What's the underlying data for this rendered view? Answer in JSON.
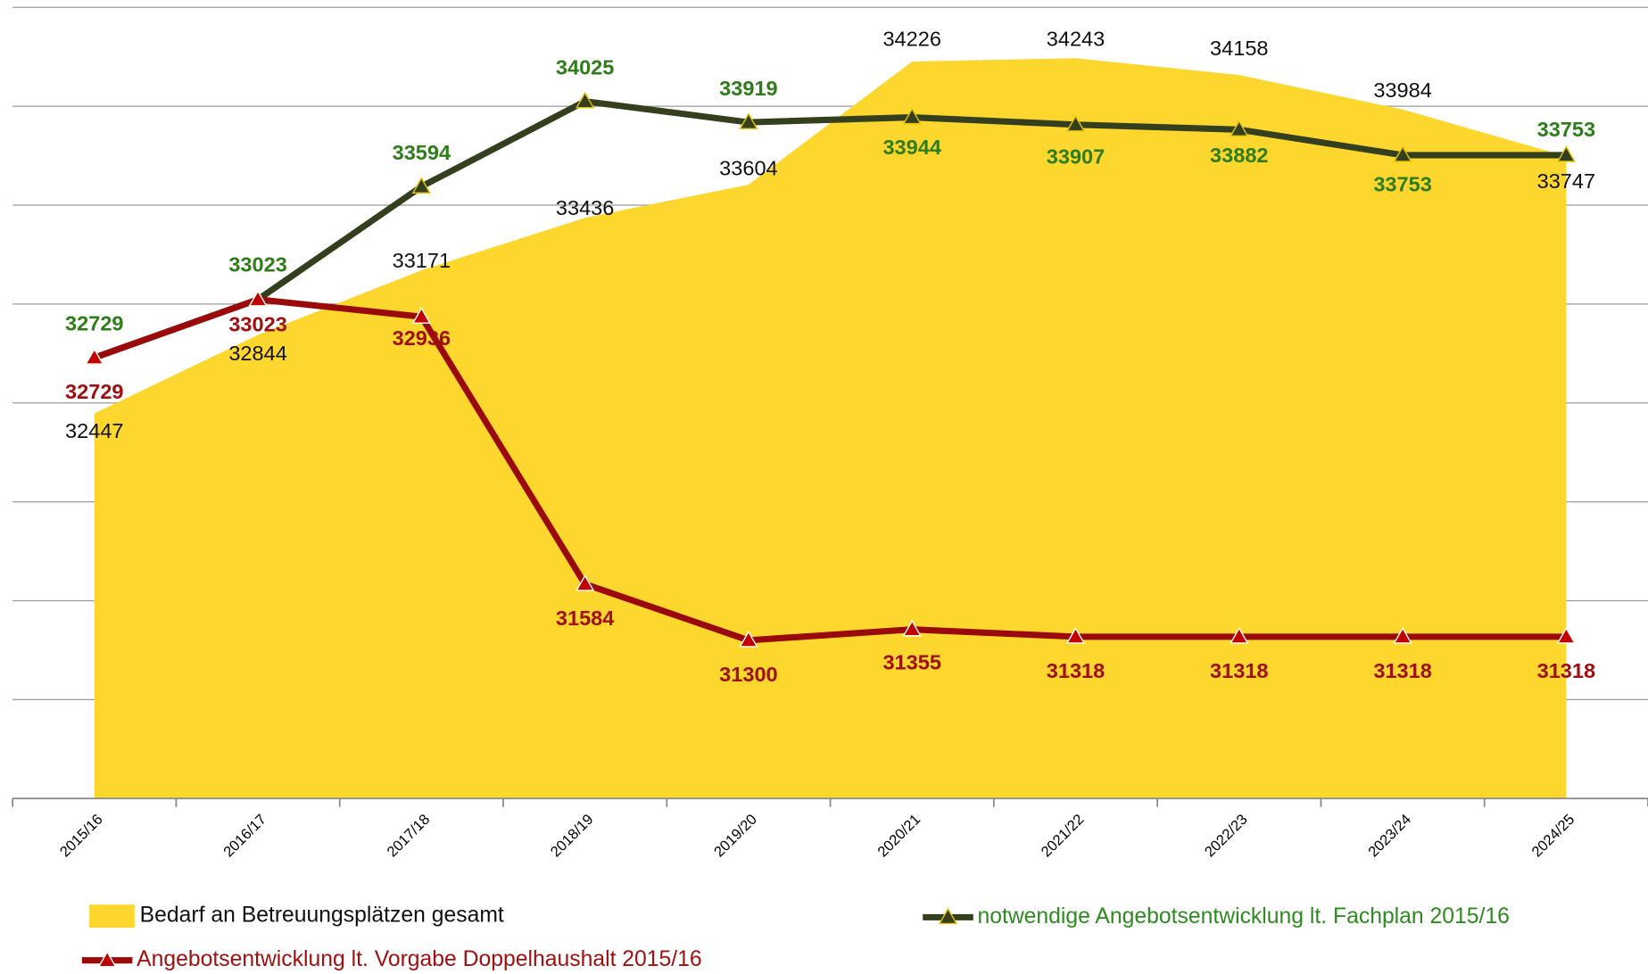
{
  "chart_data": {
    "type": "area_line",
    "categories": [
      "2015/16",
      "2016/17",
      "2017/18",
      "2018/19",
      "2019/20",
      "2020/21",
      "2021/22",
      "2022/23",
      "2023/24",
      "2024/25"
    ],
    "series": [
      {
        "name": "Bedarf an Betreuungsplätzen gesamt",
        "type": "area",
        "color": "#fdd62e",
        "values": [
          32447,
          32844,
          33171,
          33436,
          33604,
          34226,
          34243,
          34158,
          33984,
          33747
        ]
      },
      {
        "name": "notwendige Angebotsentwicklung lt. Fachplan 2015/16",
        "type": "line",
        "color": "#343f1e",
        "values": [
          32729,
          33023,
          33594,
          34025,
          33919,
          33944,
          33907,
          33882,
          33753,
          33753
        ]
      },
      {
        "name": "Angebotsentwicklung lt. Vorgabe Doppelhaushalt 2015/16",
        "type": "line",
        "color": "#9b0a0a",
        "values": [
          32729,
          33023,
          32936,
          31584,
          31300,
          31355,
          31318,
          31318,
          31318,
          31318
        ]
      }
    ],
    "ylim": [
      30500,
      34500
    ],
    "yticks": [
      30500,
      31000,
      31500,
      32000,
      32500,
      33000,
      33500,
      34000,
      34500
    ],
    "grid": true
  }
}
